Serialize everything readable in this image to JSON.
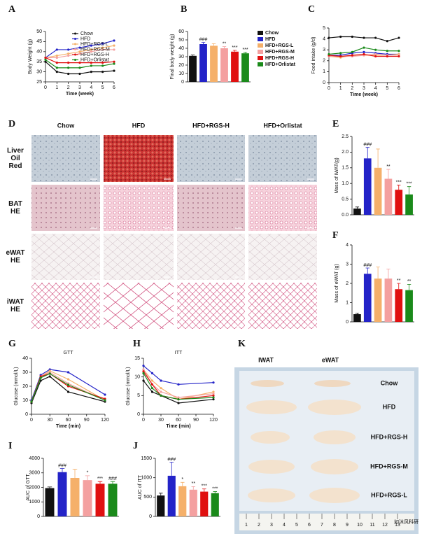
{
  "chart_data": [
    {
      "type": "line",
      "title": null,
      "xlabel": "Time (week)",
      "ylabel": "Body Weight (g)",
      "x": [
        0,
        1,
        2,
        3,
        4,
        5,
        6
      ],
      "xlim": [
        0,
        6
      ],
      "xticks": [
        0,
        1,
        2,
        3,
        4,
        5,
        6
      ],
      "ylim": [
        25,
        50
      ],
      "yticks": [
        25,
        30,
        35,
        40,
        45,
        50
      ],
      "legend": true,
      "series": [
        {
          "name": "Chow",
          "color": "#111111",
          "values": [
            35,
            30,
            29,
            29,
            30,
            30,
            30.5
          ]
        },
        {
          "name": "HFD",
          "color": "#2323c8",
          "values": [
            37,
            41,
            41,
            42,
            43,
            44,
            45.5
          ]
        },
        {
          "name": "HFD+RGS-L",
          "color": "#f5b06a",
          "values": [
            37,
            38,
            39,
            40,
            41,
            42,
            43
          ]
        },
        {
          "name": "HFD+RGS-M",
          "color": "#f4a0a0",
          "values": [
            37,
            37,
            38,
            39,
            40,
            41,
            41
          ]
        },
        {
          "name": "HFD+RGS-H",
          "color": "#e01010",
          "values": [
            37,
            34.5,
            34.5,
            34.5,
            34.5,
            34.5,
            35
          ]
        },
        {
          "name": "HFD+Orlistat",
          "color": "#1a8a1a",
          "values": [
            36,
            32,
            32,
            32,
            33,
            33,
            34
          ]
        }
      ]
    },
    {
      "type": "bar",
      "ylabel": "Final body weight (g)",
      "ylim": [
        0,
        60
      ],
      "yticks": [
        0,
        10,
        20,
        30,
        40,
        50,
        60
      ],
      "categories": [
        null,
        null,
        null,
        null,
        null,
        null
      ],
      "values": [
        31,
        45,
        43,
        40,
        36,
        34
      ],
      "errors": [
        1,
        2,
        2.5,
        2,
        1.5,
        1
      ],
      "annotations": [
        null,
        "###",
        null,
        "**",
        "***",
        "***"
      ],
      "colors": [
        "#111111",
        "#2323c8",
        "#f5b06a",
        "#f4a0a0",
        "#e01010",
        "#1a8a1a"
      ],
      "legend": [
        "Chow",
        "HFD",
        "HFD+RGS-L",
        "HFD+RGS-M",
        "HFD+RGS-H",
        "HFD+Orlistat"
      ]
    },
    {
      "type": "line",
      "xlabel": "Time (week)",
      "ylabel": "Food intake (g/d)",
      "x": [
        0,
        1,
        2,
        3,
        4,
        5,
        6
      ],
      "xlim": [
        0,
        6
      ],
      "xticks": [
        0,
        1,
        2,
        3,
        4,
        5,
        6
      ],
      "ylim": [
        0,
        5
      ],
      "yticks": [
        0,
        1,
        2,
        3,
        4,
        5
      ],
      "series": [
        {
          "name": "Chow",
          "color": "#111111",
          "values": [
            4.1,
            4.2,
            4.2,
            4.1,
            4.1,
            3.8,
            4.1
          ]
        },
        {
          "name": "HFD",
          "color": "#2323c8",
          "values": [
            2.5,
            2.5,
            2.7,
            2.8,
            2.7,
            2.6,
            2.6
          ]
        },
        {
          "name": "HFD+RGS-L",
          "color": "#f5b06a",
          "values": [
            2.4,
            2.3,
            2.5,
            2.5,
            2.5,
            2.5,
            2.6
          ]
        },
        {
          "name": "HFD+RGS-M",
          "color": "#f4a0a0",
          "values": [
            2.4,
            2.4,
            2.4,
            2.5,
            2.6,
            2.5,
            2.5
          ]
        },
        {
          "name": "HFD+RGS-H",
          "color": "#e01010",
          "values": [
            2.5,
            2.4,
            2.5,
            2.6,
            2.4,
            2.4,
            2.4
          ]
        },
        {
          "name": "HFD+Orlistat",
          "color": "#1a8a1a",
          "values": [
            2.6,
            2.7,
            2.8,
            3.2,
            3.0,
            2.9,
            2.9
          ]
        }
      ]
    },
    {
      "type": "bar",
      "ylabel": "Mass of iWAT(g)",
      "ylim": [
        0,
        2.5
      ],
      "yticks": [
        {
          "value": 0,
          "label": "0.0"
        },
        0.5,
        {
          "value": 1,
          "label": "1.0"
        },
        1.5,
        {
          "value": 2,
          "label": "2.0"
        },
        2.5
      ],
      "categories": [
        null,
        null,
        null,
        null,
        null,
        null
      ],
      "values": [
        0.2,
        1.8,
        1.5,
        1.15,
        0.8,
        0.65
      ],
      "errors": [
        0.05,
        0.35,
        0.6,
        0.3,
        0.15,
        0.25
      ],
      "annotations": [
        null,
        "###",
        null,
        "**",
        "***",
        "***"
      ],
      "colors": [
        "#111111",
        "#2323c8",
        "#f5b06a",
        "#f4a0a0",
        "#e01010",
        "#1a8a1a"
      ]
    },
    {
      "type": "bar",
      "ylabel": "Mass of eWAT (g)",
      "ylim": [
        0,
        4
      ],
      "yticks": [
        0,
        1,
        2,
        3,
        4
      ],
      "categories": [
        null,
        null,
        null,
        null,
        null,
        null
      ],
      "values": [
        0.4,
        2.5,
        2.25,
        2.25,
        1.7,
        1.65
      ],
      "errors": [
        0.05,
        0.3,
        0.6,
        0.5,
        0.3,
        0.3
      ],
      "annotations": [
        null,
        "###",
        null,
        null,
        "**",
        "**"
      ],
      "colors": [
        "#111111",
        "#2323c8",
        "#f5b06a",
        "#f4a0a0",
        "#e01010",
        "#1a8a1a"
      ]
    },
    {
      "type": "line",
      "title": "GTT",
      "xlabel": "Time (min)",
      "ylabel": "Glucose (mmol/L)",
      "x": [
        0,
        15,
        30,
        60,
        120
      ],
      "xlim": [
        0,
        120
      ],
      "xticks": [
        0,
        30,
        60,
        90,
        120
      ],
      "ylim": [
        0,
        40
      ],
      "yticks": [
        0,
        10,
        20,
        30,
        40
      ],
      "series": [
        {
          "name": "Chow",
          "color": "#111111",
          "values": [
            8,
            24,
            27,
            16,
            9
          ]
        },
        {
          "name": "HFD",
          "color": "#2323c8",
          "values": [
            10,
            28,
            32,
            30,
            14
          ]
        },
        {
          "name": "HFD+RGS-L",
          "color": "#f5b06a",
          "values": [
            9,
            27,
            31,
            25,
            10
          ]
        },
        {
          "name": "HFD+RGS-M",
          "color": "#f4a0a0",
          "values": [
            9,
            27,
            30,
            22,
            10
          ]
        },
        {
          "name": "HFD+RGS-H",
          "color": "#e01010",
          "values": [
            9,
            27,
            29,
            20,
            11
          ]
        },
        {
          "name": "HFD+Orlistat",
          "color": "#1a8a1a",
          "values": [
            9,
            26,
            29,
            21,
            10
          ]
        }
      ]
    },
    {
      "type": "line",
      "title": "ITT",
      "xlabel": "Time (min)",
      "ylabel": "Glucose (mmol/L)",
      "x": [
        0,
        15,
        30,
        60,
        120
      ],
      "xlim": [
        0,
        120
      ],
      "xticks": [
        0,
        30,
        60,
        90,
        120
      ],
      "ylim": [
        0,
        15
      ],
      "yticks": [
        0,
        5,
        10,
        15
      ],
      "series": [
        {
          "name": "Chow",
          "color": "#111111",
          "values": [
            9,
            6,
            5,
            3,
            4
          ]
        },
        {
          "name": "HFD",
          "color": "#2323c8",
          "values": [
            13,
            11,
            9,
            8,
            8.5
          ]
        },
        {
          "name": "HFD+RGS-L",
          "color": "#f5b06a",
          "values": [
            12,
            9,
            7,
            4,
            6
          ]
        },
        {
          "name": "HFD+RGS-M",
          "color": "#f4a0a0",
          "values": [
            12,
            8,
            6,
            4.5,
            5.5
          ]
        },
        {
          "name": "HFD+RGS-H",
          "color": "#e01010",
          "values": [
            11.5,
            8,
            5,
            4,
            5
          ]
        },
        {
          "name": "HFD+Orlistat",
          "color": "#1a8a1a",
          "values": [
            11,
            7,
            5,
            4,
            4.5
          ]
        }
      ]
    },
    {
      "type": "bar",
      "ylabel": "AUC of GTT",
      "ylim": [
        0,
        4000
      ],
      "yticks": [
        0,
        1000,
        2000,
        3000,
        4000
      ],
      "categories": [
        null,
        null,
        null,
        null,
        null,
        null
      ],
      "values": [
        1950,
        3050,
        2650,
        2500,
        2250,
        2250
      ],
      "errors": [
        80,
        250,
        600,
        300,
        150,
        150
      ],
      "annotations": [
        null,
        "###",
        null,
        "*",
        "***",
        "###"
      ],
      "colors": [
        "#111111",
        "#2323c8",
        "#f5b06a",
        "#f4a0a0",
        "#e01010",
        "#1a8a1a"
      ]
    },
    {
      "type": "bar",
      "ylabel": "AUC of ITT",
      "ylim": [
        0,
        1500
      ],
      "yticks": [
        0,
        500,
        1000,
        1500
      ],
      "categories": [
        null,
        null,
        null,
        null,
        null,
        null
      ],
      "values": [
        540,
        1050,
        780,
        690,
        640,
        600
      ],
      "errors": [
        60,
        350,
        100,
        80,
        70,
        40
      ],
      "annotations": [
        null,
        "###",
        "*",
        "**",
        "***",
        "***"
      ],
      "colors": [
        "#111111",
        "#2323c8",
        "#f5b06a",
        "#f4a0a0",
        "#e01010",
        "#1a8a1a"
      ]
    }
  ],
  "panel_letters": [
    "A",
    "B",
    "C",
    "D",
    "E",
    "F",
    "G",
    "H",
    "I",
    "J",
    "K"
  ],
  "histology": {
    "columns": [
      "Chow",
      "HFD",
      "HFD+RGS-H",
      "HFD+Orlistat"
    ],
    "rows": [
      [
        "Liver",
        "Oil",
        "Red"
      ],
      [
        "BAT",
        "HE"
      ],
      [
        "eWAT",
        "HE"
      ],
      [
        "iWAT",
        "HE"
      ]
    ]
  },
  "photo": {
    "columns": [
      "IWAT",
      "eWAT"
    ],
    "rows": [
      "Chow",
      "HFD",
      "HFD+RGS-H",
      "HFD+RGS-M",
      "HFD+RGS-L"
    ],
    "ruler": [
      "1",
      "2",
      "3",
      "4",
      "5",
      "6",
      "7",
      "8",
      "9",
      "10",
      "11",
      "12",
      "13"
    ]
  },
  "watermark": "如沐风科研"
}
